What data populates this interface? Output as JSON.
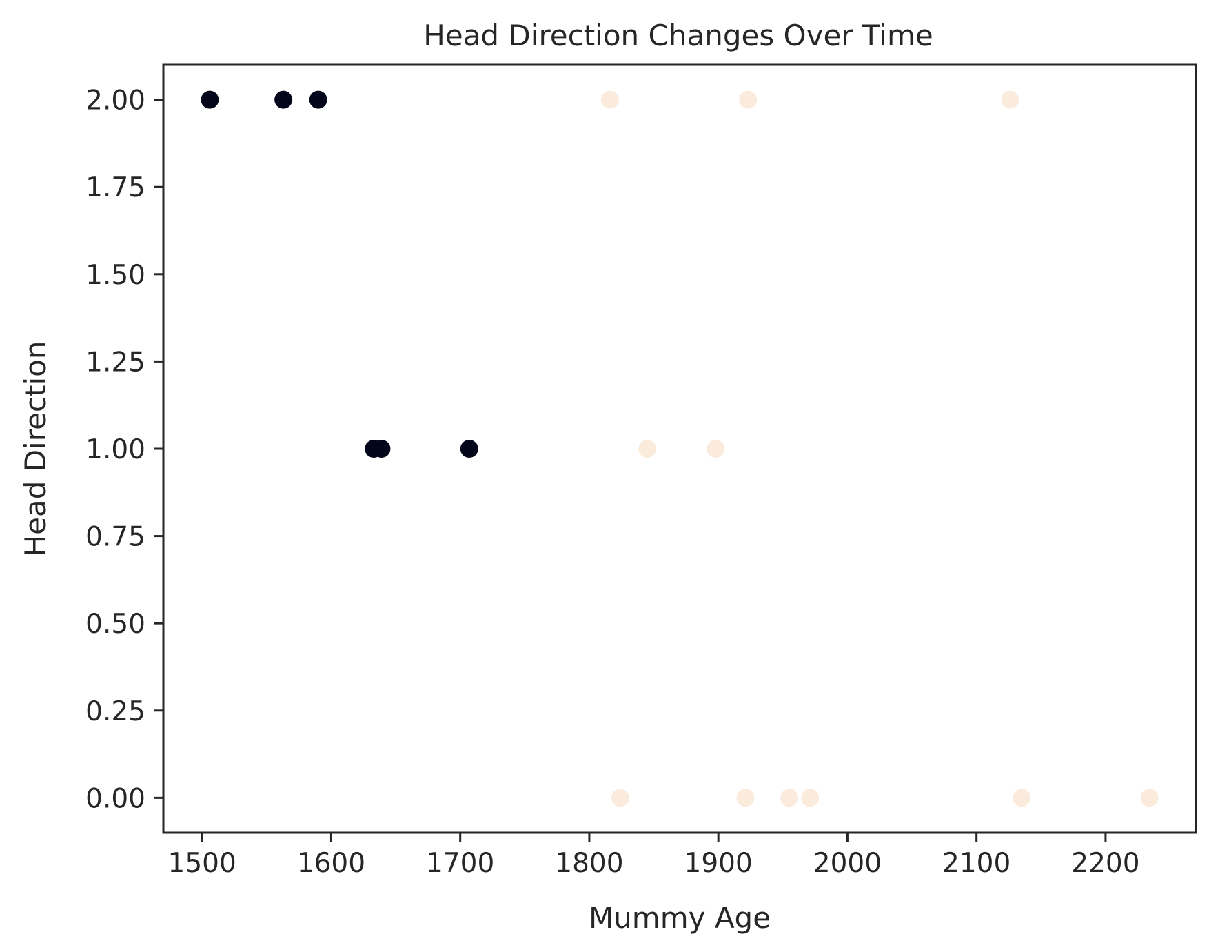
{
  "chart_data": {
    "type": "scatter",
    "title": "Head Direction Changes Over Time",
    "xlabel": "Mummy Age",
    "ylabel": "Head Direction",
    "xlim": [
      1470,
      2270
    ],
    "ylim": [
      -0.1,
      2.1
    ],
    "xticks": [
      1500,
      1600,
      1700,
      1800,
      1900,
      2000,
      2100,
      2200
    ],
    "yticks": [
      0.0,
      0.25,
      0.5,
      0.75,
      1.0,
      1.25,
      1.5,
      1.75,
      2.0
    ],
    "ytick_labels": [
      "0.00",
      "0.25",
      "0.50",
      "0.75",
      "1.00",
      "1.25",
      "1.50",
      "1.75",
      "2.00"
    ],
    "grid": false,
    "colors": {
      "dark": "#03051a",
      "light": "#faebdd",
      "axis": "#262626"
    },
    "points": [
      {
        "x": 1506,
        "y": 2,
        "group": "dark"
      },
      {
        "x": 1563,
        "y": 2,
        "group": "dark"
      },
      {
        "x": 1590,
        "y": 2,
        "group": "dark"
      },
      {
        "x": 1633,
        "y": 1,
        "group": "dark"
      },
      {
        "x": 1639,
        "y": 1,
        "group": "dark"
      },
      {
        "x": 1707,
        "y": 1,
        "group": "dark"
      },
      {
        "x": 1816,
        "y": 2,
        "group": "light"
      },
      {
        "x": 1923,
        "y": 2,
        "group": "light"
      },
      {
        "x": 2126,
        "y": 2,
        "group": "light"
      },
      {
        "x": 1845,
        "y": 1,
        "group": "light"
      },
      {
        "x": 1898,
        "y": 1,
        "group": "light"
      },
      {
        "x": 1824,
        "y": 0,
        "group": "light"
      },
      {
        "x": 1921,
        "y": 0,
        "group": "light"
      },
      {
        "x": 1955,
        "y": 0,
        "group": "light"
      },
      {
        "x": 1971,
        "y": 0,
        "group": "light"
      },
      {
        "x": 2135,
        "y": 0,
        "group": "light"
      },
      {
        "x": 2234,
        "y": 0,
        "group": "light"
      }
    ]
  }
}
